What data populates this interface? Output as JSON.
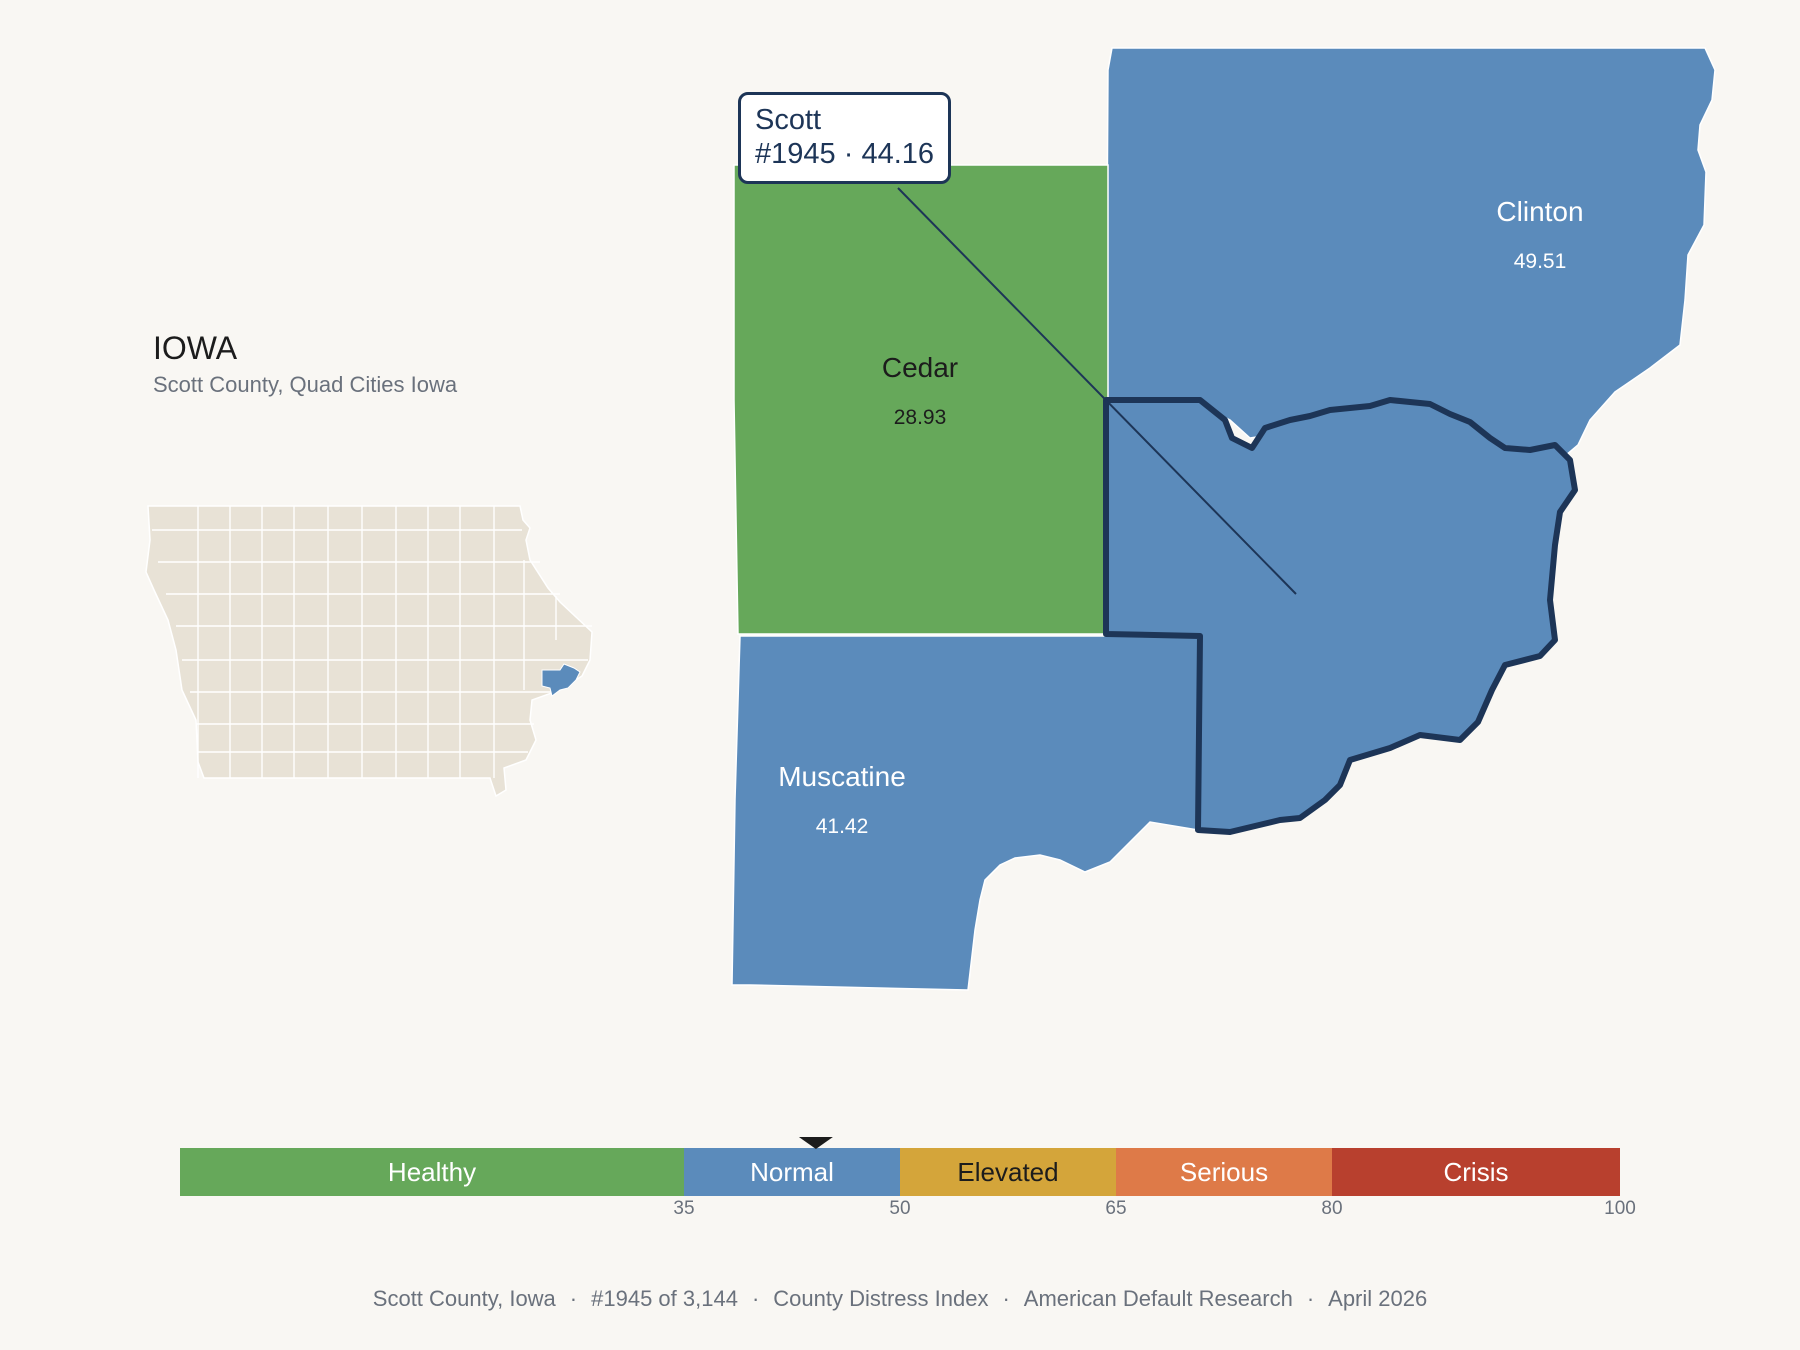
{
  "state": {
    "name": "IOWA",
    "subtitle": "Scott County, Quad Cities Iowa"
  },
  "selected": {
    "name": "Scott",
    "rank_label": "#1945",
    "score": "44.16"
  },
  "counties": [
    {
      "name": "Cedar",
      "score": "28.93",
      "color": "#66a85a"
    },
    {
      "name": "Clinton",
      "score": "49.51",
      "color": "#5b8bbb"
    },
    {
      "name": "Muscatine",
      "score": "41.42",
      "color": "#5b8bbb"
    },
    {
      "name": "Scott",
      "score": "44.16",
      "color": "#5b8bbb"
    }
  ],
  "legend": {
    "bands": [
      {
        "label": "Healthy",
        "from": 0,
        "to": 35,
        "color": "#66a85a"
      },
      {
        "label": "Normal",
        "from": 35,
        "to": 50,
        "color": "#5b8bbb"
      },
      {
        "label": "Elevated",
        "from": 50,
        "to": 65,
        "color": "#d4a53a"
      },
      {
        "label": "Serious",
        "from": 65,
        "to": 80,
        "color": "#de7a48"
      },
      {
        "label": "Crisis",
        "from": 80,
        "to": 100,
        "color": "#b8402e"
      }
    ],
    "ticks": [
      "35",
      "50",
      "65",
      "80",
      "100"
    ],
    "marker_value": 44.16
  },
  "footer": {
    "county": "Scott County, Iowa",
    "rank": "#1945 of 3,144",
    "index": "County Distress Index",
    "source": "American Default Research",
    "date": "April 2026"
  },
  "colors": {
    "outline": "#1d3557",
    "inset_fill": "#e8e2d6",
    "inset_highlight": "#5b8bbb",
    "background": "#f9f7f3"
  }
}
